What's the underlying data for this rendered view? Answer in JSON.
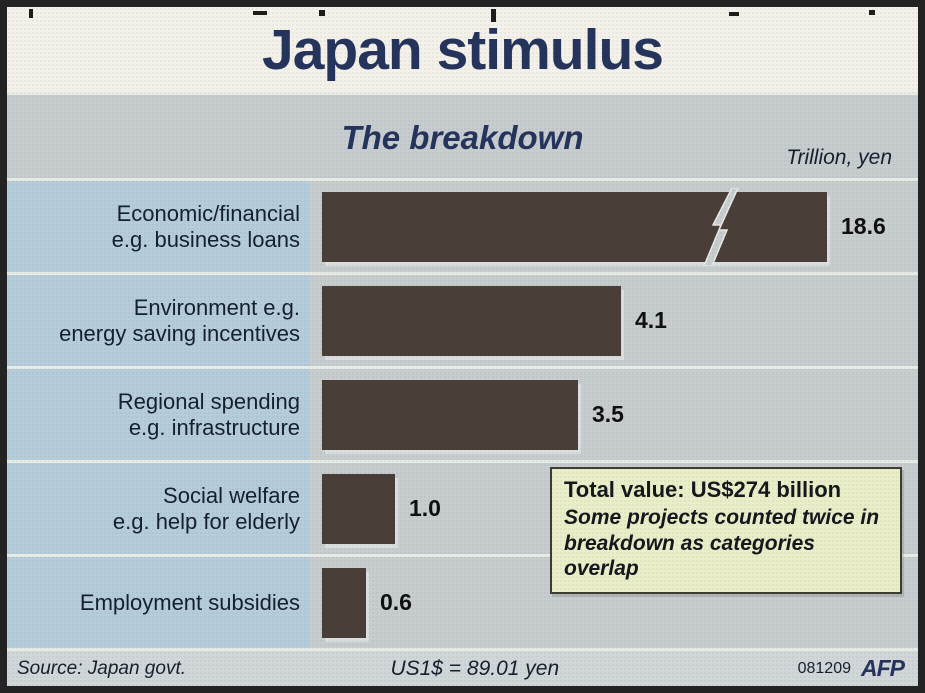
{
  "header": {
    "title": "Japan stimulus"
  },
  "chart": {
    "subtitle": "The breakdown",
    "unit_label": "Trillion, yen"
  },
  "rows": [
    {
      "label_lines": [
        "Economic/financial",
        "e.g. business loans"
      ],
      "value": "18.6",
      "broken": true
    },
    {
      "label_lines": [
        "Environment e.g.",
        "energy saving incentives"
      ],
      "value": "4.1",
      "broken": false
    },
    {
      "label_lines": [
        "Regional spending",
        "e.g. infrastructure"
      ],
      "value": "3.5",
      "broken": false
    },
    {
      "label_lines": [
        "Social welfare",
        "e.g. help for elderly"
      ],
      "value": "1.0",
      "broken": false
    },
    {
      "label_lines": [
        "Employment subsidies"
      ],
      "value": "0.6",
      "broken": false
    }
  ],
  "note": {
    "line1": "Total value: US$274 billion",
    "line2": "Some projects counted twice in breakdown as categories overlap"
  },
  "footer": {
    "source": "Source: Japan govt.",
    "exchange": "US1$ = 89.01 yen",
    "date": "081209",
    "agency": "AFP"
  },
  "colors": {
    "frame": "#232323",
    "header-bg": "#f3f1ea",
    "body-bg": "#c7cccf",
    "band-bg": "#b5ccdb",
    "bar": "#4a3e38",
    "title": "#25345c",
    "text": "#15202e",
    "note-bg": "#e9eec8",
    "note-border": "#3d3d33",
    "footer-bg": "#d1d6d8",
    "divider": "#e9ebe7"
  },
  "chart_data": {
    "type": "bar",
    "orientation": "horizontal",
    "title": "Japan stimulus",
    "subtitle": "The breakdown",
    "unit": "Trillion, yen",
    "categories": [
      "Economic/financial e.g. business loans",
      "Environment e.g. energy saving incentives",
      "Regional spending e.g. infrastructure",
      "Social welfare e.g. help for elderly",
      "Employment subsidies"
    ],
    "values": [
      18.6,
      4.1,
      3.5,
      1.0,
      0.6
    ],
    "value_labels": [
      "18.6",
      "4.1",
      "3.5",
      "1.0",
      "0.6"
    ],
    "axis_break": {
      "series_index": 0,
      "note": "18.6 bar drawn truncated with lightning break symbol"
    },
    "xlim": [
      0,
      7
    ],
    "grid": false,
    "legend": false,
    "annotations": [
      "Total value: US$274 billion",
      "Some projects counted twice in breakdown as categories overlap"
    ]
  }
}
